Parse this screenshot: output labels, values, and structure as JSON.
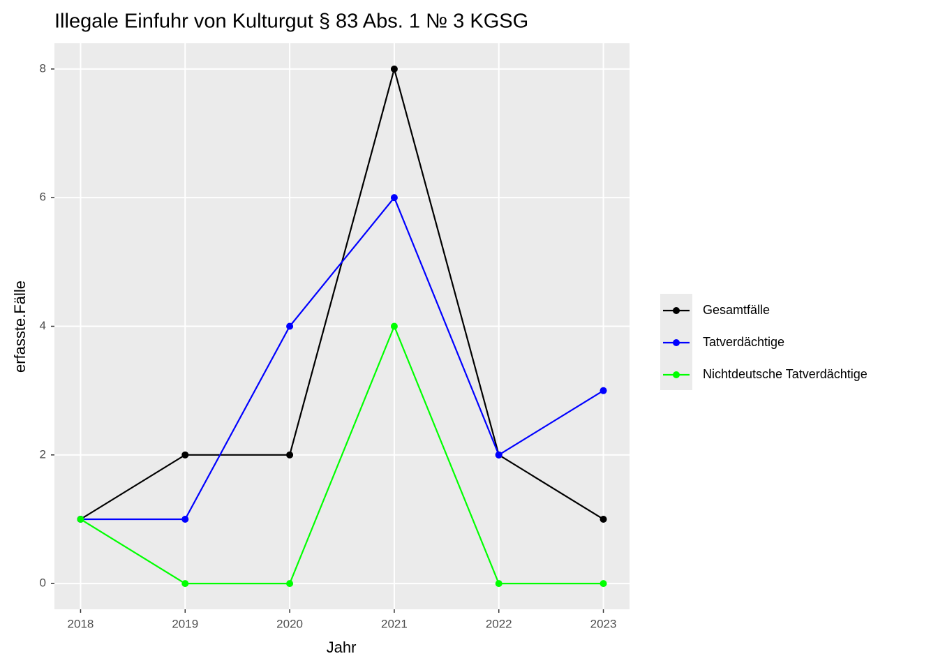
{
  "chart_data": {
    "type": "line",
    "title": "Illegale Einfuhr von Kulturgut § 83 Abs. 1 № 3 KGSG",
    "x_label": "Jahr",
    "y_label": "erfasste.Fälle",
    "x": [
      2018,
      2019,
      2020,
      2021,
      2022,
      2023
    ],
    "series": [
      {
        "name": "Gesamtfälle",
        "color": "#000000",
        "values": [
          1,
          2,
          2,
          8,
          2,
          1
        ]
      },
      {
        "name": "Tatverdächtige",
        "color": "#0000ff",
        "values": [
          1,
          1,
          4,
          6,
          2,
          3
        ]
      },
      {
        "name": "Nichtdeutsche Tatverdächtige",
        "color": "#00ff00",
        "values": [
          1,
          0,
          0,
          4,
          0,
          0
        ]
      }
    ],
    "xlim": [
      2017.75,
      2023.25
    ],
    "xticks": [
      2018,
      2019,
      2020,
      2021,
      2022,
      2023
    ],
    "ylim": [
      -0.4,
      8.4
    ],
    "yticks": [
      0,
      2,
      4,
      6,
      8
    ],
    "grid": true,
    "legend": "right"
  }
}
